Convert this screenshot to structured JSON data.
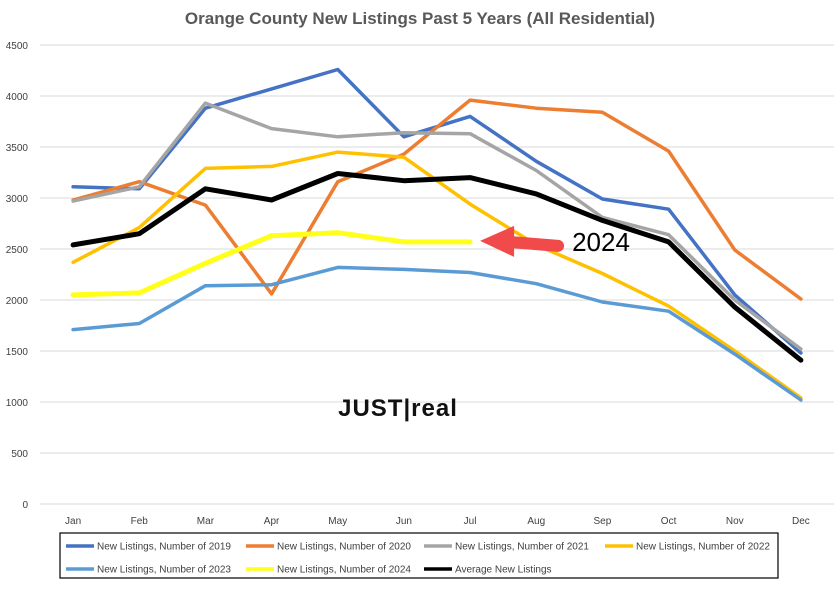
{
  "chart_data": {
    "type": "line",
    "title": "Orange County New Listings Past 5 Years (All Residential)",
    "xlabel": "",
    "ylabel": "",
    "ylim": [
      0,
      4500
    ],
    "yticks": [
      0,
      500,
      1000,
      1500,
      2000,
      2500,
      3000,
      3500,
      4000,
      4500
    ],
    "grid": true,
    "legend_position": "bottom",
    "categories": [
      "Jan",
      "Feb",
      "Mar",
      "Apr",
      "May",
      "Jun",
      "Jul",
      "Aug",
      "Sep",
      "Oct",
      "Nov",
      "Dec"
    ],
    "series": [
      {
        "name": "New Listings, Number of 2019",
        "color": "#4472C4",
        "values": [
          3110,
          3090,
          3880,
          4070,
          4260,
          3600,
          3800,
          3360,
          2990,
          2890,
          2050,
          1480
        ]
      },
      {
        "name": "New Listings, Number of 2020",
        "color": "#ED7D31",
        "values": [
          2980,
          3160,
          2930,
          2060,
          3160,
          3430,
          3960,
          3880,
          3840,
          3460,
          2490,
          2010
        ]
      },
      {
        "name": "New Listings, Number of 2021",
        "color": "#A5A5A5",
        "values": [
          2970,
          3110,
          3930,
          3680,
          3600,
          3640,
          3630,
          3270,
          2810,
          2640,
          2000,
          1520
        ]
      },
      {
        "name": "New Listings, Number of 2022",
        "color": "#FFC000",
        "values": [
          2370,
          2710,
          3290,
          3310,
          3450,
          3400,
          2940,
          2540,
          2260,
          1940,
          1500,
          1040
        ]
      },
      {
        "name": "New Listings, Number of 2023",
        "color": "#5B9BD5",
        "values": [
          1710,
          1770,
          2140,
          2150,
          2320,
          2300,
          2270,
          2160,
          1980,
          1890,
          1470,
          1020
        ]
      },
      {
        "name": "New Listings, Number of 2024",
        "color": "#FFFF1A",
        "values": [
          2050,
          2070,
          2360,
          2630,
          2660,
          2570,
          2570,
          null,
          null,
          null,
          null,
          null
        ]
      },
      {
        "name": "Average New Listings",
        "color": "#000000",
        "values": [
          2540,
          2650,
          3090,
          2980,
          3240,
          3170,
          3200,
          3040,
          2780,
          2570,
          1930,
          1410
        ]
      }
    ],
    "annotation": {
      "text": "2024",
      "arrow_color": "#F04A4A",
      "points_to": {
        "series": "New Listings, Number of 2024",
        "category": "Jul",
        "value": 2570
      }
    },
    "watermark": "JUST|real"
  }
}
